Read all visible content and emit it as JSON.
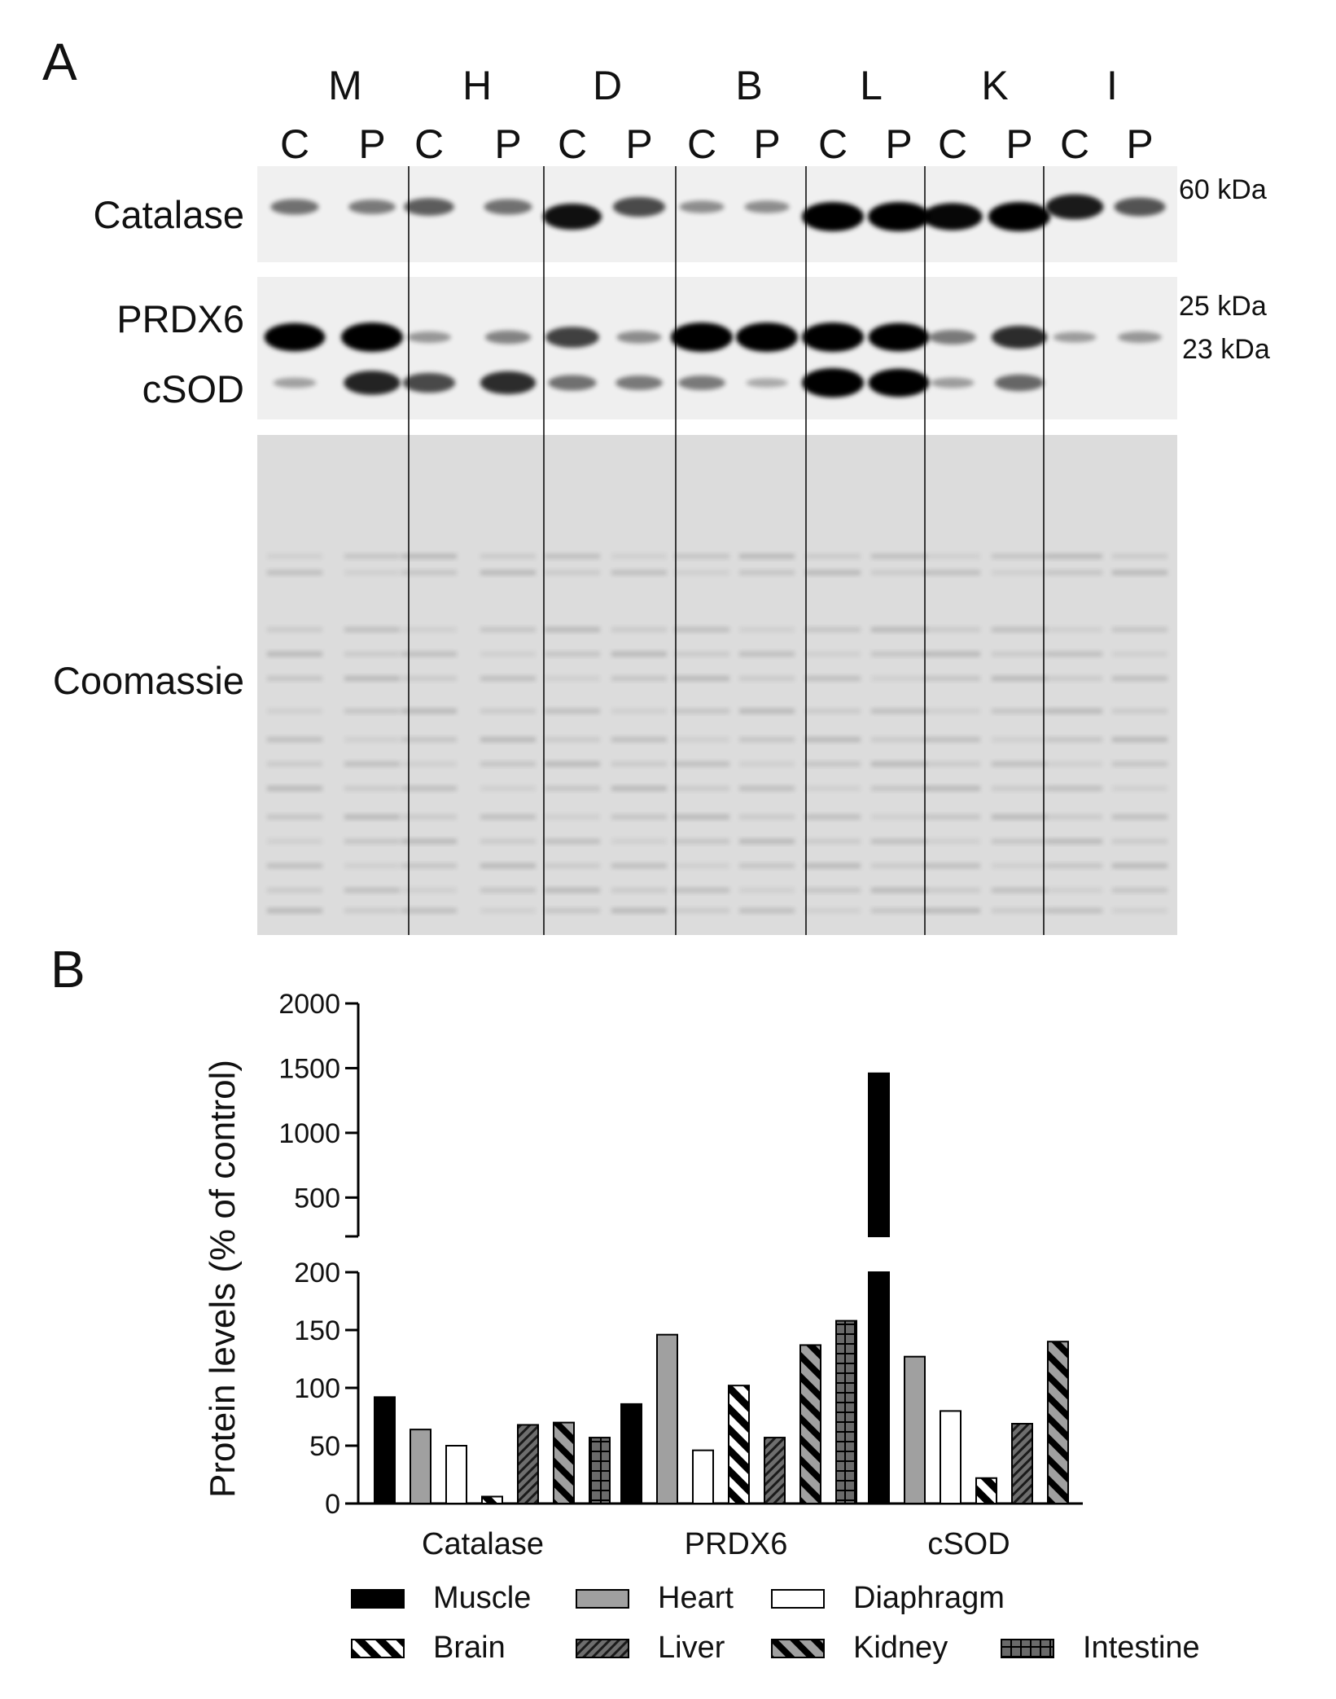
{
  "panel_a": {
    "label": "A",
    "groups": [
      "M",
      "H",
      "D",
      "B",
      "L",
      "K",
      "I"
    ],
    "lanes": [
      "C",
      "P"
    ],
    "row_labels": {
      "catalase": "Catalase",
      "prdx6": "PRDX6",
      "csod": "cSOD",
      "coomassie": "Coomassie"
    },
    "markers": {
      "m60": "60 kDa",
      "m25": "25 kDa",
      "m23": "23 kDa"
    },
    "band_intensity": {
      "catalase": [
        0.35,
        0.3,
        0.45,
        0.35,
        0.85,
        0.55,
        0.2,
        0.2,
        1.0,
        1.0,
        0.9,
        1.0,
        0.8,
        0.5
      ],
      "prdx6": [
        0.95,
        1.0,
        0.15,
        0.25,
        0.6,
        0.2,
        1.0,
        1.0,
        1.0,
        0.95,
        0.3,
        0.7,
        0.12,
        0.15
      ],
      "csod": [
        0.1,
        0.75,
        0.55,
        0.7,
        0.35,
        0.3,
        0.3,
        0.05,
        1.0,
        0.95,
        0.12,
        0.4,
        0.0,
        0.0
      ]
    }
  },
  "panel_b": {
    "label": "B"
  },
  "chart_data": {
    "type": "bar",
    "categories": [
      "Catalase",
      "PRDX6",
      "cSOD"
    ],
    "ylabel": "Protein levels  (% of control)",
    "y_axis_break": {
      "lower": [
        0,
        200
      ],
      "upper": [
        200,
        2000
      ]
    },
    "lower_ticks": [
      0,
      50,
      100,
      150,
      200
    ],
    "upper_ticks": [
      500,
      1000,
      1500,
      2000
    ],
    "series": [
      {
        "name": "Muscle",
        "values": [
          92,
          86,
          1460
        ],
        "color": "#000000",
        "pattern": "solid"
      },
      {
        "name": "Heart",
        "values": [
          64,
          146,
          127
        ],
        "color": "#a0a0a0",
        "pattern": "solid"
      },
      {
        "name": "Diaphragm",
        "values": [
          50,
          46,
          80
        ],
        "color": "#ffffff",
        "pattern": "solid"
      },
      {
        "name": "Brain",
        "values": [
          6,
          102,
          22
        ],
        "color": "#ffffff",
        "pattern": "wide-diagonal"
      },
      {
        "name": "Liver",
        "values": [
          68,
          57,
          69
        ],
        "color": "#505050",
        "pattern": "fine-diagonal"
      },
      {
        "name": "Kidney",
        "values": [
          70,
          137,
          140
        ],
        "color": "#a0a0a0",
        "pattern": "wide-diagonal-dark"
      },
      {
        "name": "Intestine",
        "values": [
          57,
          158,
          null
        ],
        "color": "#606060",
        "pattern": "grid"
      }
    ]
  }
}
